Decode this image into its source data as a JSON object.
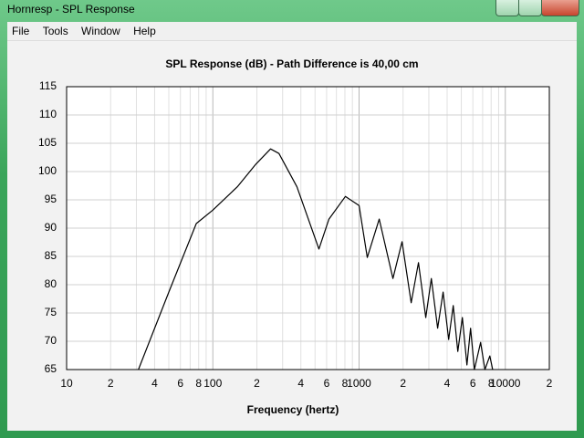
{
  "window": {
    "title": "Hornresp - SPL Response"
  },
  "menu": [
    "File",
    "Tools",
    "Window",
    "Help"
  ],
  "chart_data": {
    "type": "line",
    "title": "SPL Response (dB) - Path Difference is 40,00 cm",
    "x_label": "Frequency (hertz)",
    "log_x": true,
    "grid": true,
    "color": "#000000",
    "xlim": [
      10,
      20000
    ],
    "ylim": [
      65,
      115
    ],
    "xticks": [
      10,
      {
        "value": 20,
        "label": "2"
      },
      {
        "value": 40,
        "label": "4"
      },
      {
        "value": 60,
        "label": "6"
      },
      {
        "value": 80,
        "label": "8"
      },
      100,
      {
        "value": 200,
        "label": "2"
      },
      {
        "value": 400,
        "label": "4"
      },
      {
        "value": 600,
        "label": "6"
      },
      {
        "value": 800,
        "label": "8"
      },
      1000,
      {
        "value": 2000,
        "label": "2"
      },
      {
        "value": 4000,
        "label": "4"
      },
      {
        "value": 6000,
        "label": "6"
      },
      {
        "value": 8000,
        "label": "8"
      },
      10000,
      {
        "value": 20000,
        "label": "2"
      }
    ],
    "x_minor_grid": [
      30,
      50,
      70,
      90,
      300,
      500,
      700,
      900,
      3000,
      5000,
      7000,
      9000
    ],
    "yticks": [
      65,
      70,
      75,
      80,
      85,
      90,
      95,
      100,
      105,
      110,
      115
    ],
    "x": [
      31,
      50,
      77,
      100,
      147,
      197,
      248,
      283,
      376,
      531,
      622,
      806,
      1000,
      1138,
      1373,
      1703,
      1966,
      2270,
      2547,
      2858,
      3118,
      3447,
      3758,
      4099,
      4403,
      4730,
      5082,
      5465,
      5788,
      6150,
      6776,
      7250,
      7834,
      8200
    ],
    "values": [
      65,
      78.7,
      90.8,
      93.2,
      97.3,
      101.3,
      104,
      103.2,
      97.3,
      86.3,
      91.6,
      95.6,
      94,
      84.8,
      91.6,
      81.1,
      87.6,
      76.8,
      83.9,
      74.2,
      81.1,
      72.3,
      78.7,
      70.3,
      76.3,
      68.2,
      74.2,
      65.8,
      72.3,
      65,
      69.8,
      65,
      67.4,
      65
    ]
  }
}
